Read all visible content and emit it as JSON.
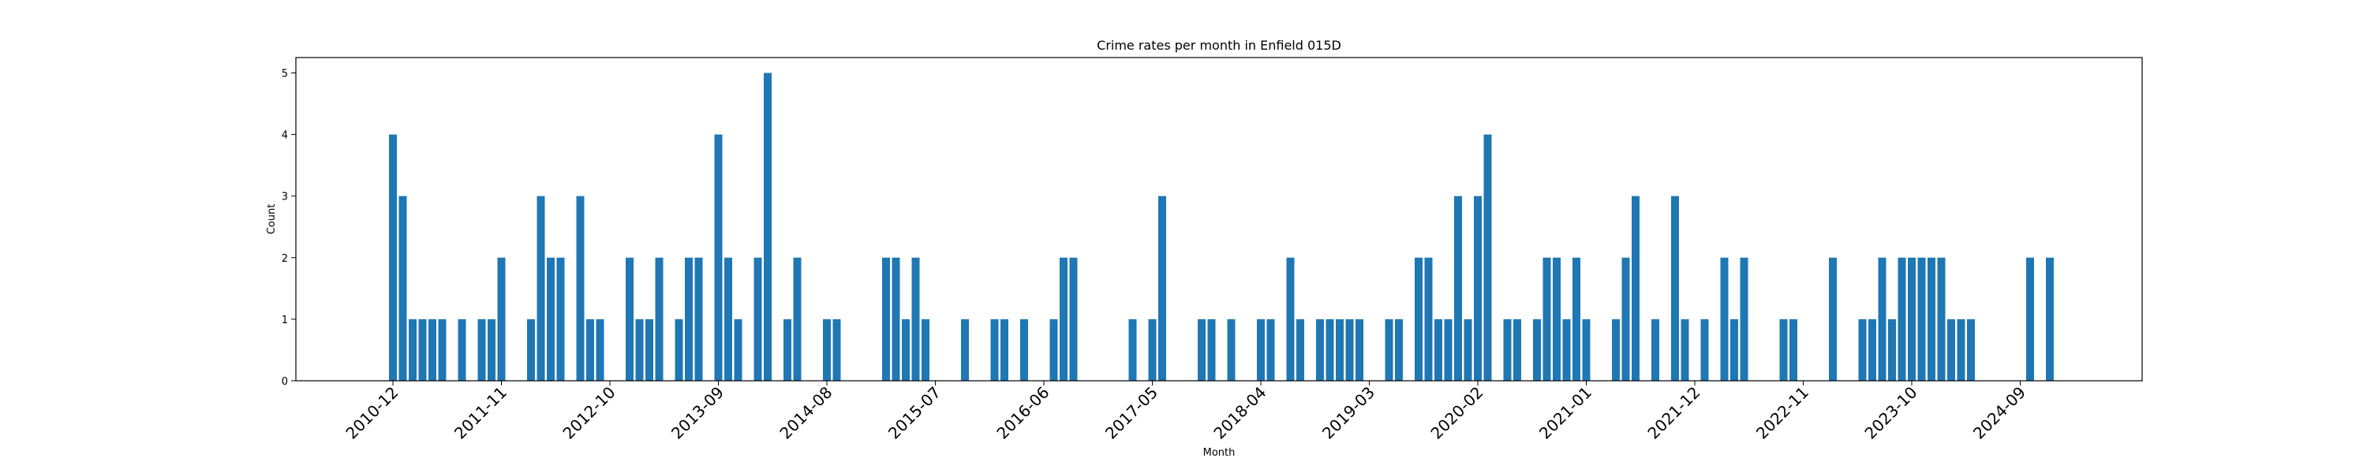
{
  "chart_data": {
    "type": "bar",
    "title": "Crime rates per month in Enfield 015D",
    "xlabel": "Month",
    "ylabel": "Count",
    "ylim": [
      0,
      5.25
    ],
    "yticks": [
      0,
      1,
      2,
      3,
      4,
      5
    ],
    "xticks": [
      "2010-12",
      "2011-11",
      "2012-10",
      "2013-09",
      "2014-08",
      "2015-07",
      "2016-06",
      "2017-05",
      "2018-04",
      "2019-03",
      "2020-02",
      "2021-01",
      "2021-12",
      "2022-11",
      "2023-10",
      "2024-09"
    ],
    "bar_color": "#1f77b4",
    "grid": false,
    "x": [
      "2010-12",
      "2011-01",
      "2011-02",
      "2011-03",
      "2011-04",
      "2011-05",
      "2011-07",
      "2011-09",
      "2011-10",
      "2011-11",
      "2012-02",
      "2012-03",
      "2012-04",
      "2012-05",
      "2012-07",
      "2012-08",
      "2012-09",
      "2012-12",
      "2013-01",
      "2013-02",
      "2013-03",
      "2013-05",
      "2013-06",
      "2013-07",
      "2013-09",
      "2013-10",
      "2013-11",
      "2014-01",
      "2014-02",
      "2014-04",
      "2014-05",
      "2014-08",
      "2014-09",
      "2015-02",
      "2015-03",
      "2015-04",
      "2015-05",
      "2015-06",
      "2015-10",
      "2016-01",
      "2016-02",
      "2016-04",
      "2016-07",
      "2016-08",
      "2016-09",
      "2017-03",
      "2017-05",
      "2017-06",
      "2017-10",
      "2017-11",
      "2018-01",
      "2018-04",
      "2018-05",
      "2018-07",
      "2018-08",
      "2018-10",
      "2018-11",
      "2018-12",
      "2019-01",
      "2019-02",
      "2019-05",
      "2019-06",
      "2019-08",
      "2019-09",
      "2019-10",
      "2019-11",
      "2019-12",
      "2020-01",
      "2020-02",
      "2020-03",
      "2020-05",
      "2020-06",
      "2020-08",
      "2020-09",
      "2020-10",
      "2020-11",
      "2020-12",
      "2021-01",
      "2021-04",
      "2021-05",
      "2021-06",
      "2021-08",
      "2021-10",
      "2021-11",
      "2022-01",
      "2022-03",
      "2022-04",
      "2022-05",
      "2022-09",
      "2022-10",
      "2023-02",
      "2023-05",
      "2023-06",
      "2023-07",
      "2023-08",
      "2023-09",
      "2023-10",
      "2023-11",
      "2023-12",
      "2024-01",
      "2024-02",
      "2024-03",
      "2024-04",
      "2024-10",
      "2024-12"
    ],
    "values": [
      4,
      3,
      1,
      1,
      1,
      1,
      1,
      1,
      1,
      2,
      1,
      3,
      2,
      2,
      3,
      1,
      1,
      2,
      1,
      1,
      2,
      1,
      2,
      2,
      4,
      2,
      1,
      2,
      5,
      1,
      2,
      1,
      1,
      2,
      2,
      1,
      2,
      1,
      1,
      1,
      1,
      1,
      1,
      2,
      2,
      1,
      1,
      3,
      1,
      1,
      1,
      1,
      1,
      2,
      1,
      1,
      1,
      1,
      1,
      1,
      1,
      1,
      2,
      2,
      1,
      1,
      3,
      1,
      3,
      4,
      1,
      1,
      1,
      2,
      2,
      1,
      2,
      1,
      1,
      2,
      3,
      1,
      3,
      1,
      1,
      2,
      1,
      2,
      1,
      1,
      2,
      1,
      1,
      2,
      1,
      2,
      2,
      2,
      2,
      2,
      1,
      1,
      1,
      2,
      2
    ]
  }
}
